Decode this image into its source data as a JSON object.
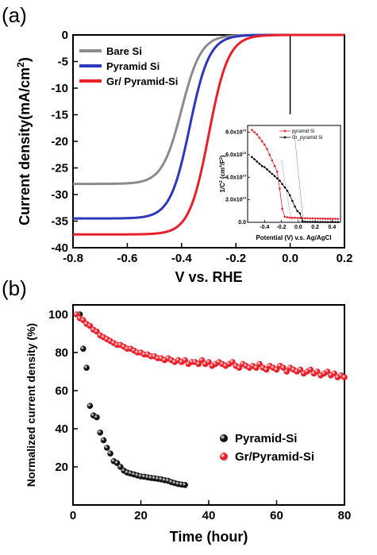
{
  "panel_a_label": "(a)",
  "panel_b_label": "(b)",
  "chart_data": [
    {
      "type": "line",
      "xlabel": "V vs. RHE",
      "ylabel_parts": [
        "Current density",
        "(mA/cm",
        "2",
        ")"
      ],
      "xlim": [
        -0.8,
        0.2
      ],
      "ylim": [
        -40,
        0
      ],
      "xticks": [
        -0.8,
        -0.6,
        -0.4,
        -0.2,
        0.0,
        0.2
      ],
      "xtick_labels": [
        "-0.8",
        "-0.6",
        "-0.4",
        "-0.2",
        "0.0",
        "0.2"
      ],
      "yticks": [
        0,
        -5,
        -10,
        -15,
        -20,
        -25,
        -30,
        -35,
        -40
      ],
      "ytick_labels": [
        "0",
        "-5",
        "-10",
        "-15",
        "-20",
        "-25",
        "-30",
        "-35",
        "-40"
      ],
      "legend_position": "top-left",
      "zero_line_x": 0.0,
      "series": [
        {
          "name": "Bare Si",
          "color": "#8c8c8c",
          "jsat": -28,
          "v_mid": -0.4,
          "width": 0.036,
          "v_start": -0.8
        },
        {
          "name": "Pyramid Si",
          "color": "#2e38b8",
          "jsat": -34.5,
          "v_mid": -0.37,
          "width": 0.036,
          "v_start": -0.8
        },
        {
          "name": "Gr/ Pyramid-Si",
          "color": "#e8202a",
          "jsat": -37.5,
          "v_mid": -0.3,
          "width": 0.036,
          "v_start": -0.8
        }
      ],
      "inset": {
        "xlabel": "Potential (V) v.s. Ag/AgCl",
        "ylabel_parts": [
          "1/C",
          "2",
          " (cm",
          "4",
          "/F",
          "2",
          ")"
        ],
        "xlim": [
          -0.6,
          0.5
        ],
        "ylim": [
          0,
          8.6
        ],
        "xticks": [
          -0.4,
          -0.2,
          0.0,
          0.2,
          0.4
        ],
        "xtick_labels": [
          "-0.4",
          "-0.2",
          "0.0",
          "0.2",
          "0.4"
        ],
        "yticks": [
          0,
          2,
          4,
          6,
          8
        ],
        "ytick_labels": [
          "0.0",
          "2.0x10",
          "4.0x10",
          "6.0x10",
          "8.0x10"
        ],
        "ytick_exponent": "15",
        "series": [
          {
            "name": "pyramid Si",
            "color": "#e8202a",
            "x": [
              -0.55,
              -0.52,
              -0.49,
              -0.46,
              -0.43,
              -0.4,
              -0.37,
              -0.34,
              -0.31,
              -0.28,
              -0.25,
              -0.22,
              -0.19,
              -0.16,
              -0.13,
              -0.1,
              -0.07,
              -0.04,
              -0.01,
              0.02,
              0.05,
              0.08,
              0.11,
              0.14,
              0.17,
              0.2,
              0.23,
              0.26,
              0.29,
              0.32,
              0.35,
              0.38,
              0.41,
              0.44,
              0.47
            ],
            "y": [
              8.2,
              8.0,
              7.8,
              7.5,
              7.2,
              6.9,
              6.5,
              6.0,
              5.5,
              5.0,
              4.5,
              3.0,
              1.2,
              0.5,
              0.45,
              0.42,
              0.4,
              0.4,
              0.38,
              0.38,
              0.37,
              0.36,
              0.36,
              0.35,
              0.35,
              0.34,
              0.34,
              0.33,
              0.33,
              0.32,
              0.32,
              0.32,
              0.31,
              0.31,
              0.3
            ]
          },
          {
            "name": "Gr_pyramid Si",
            "color": "#000000",
            "x": [
              -0.55,
              -0.52,
              -0.49,
              -0.46,
              -0.43,
              -0.4,
              -0.37,
              -0.34,
              -0.31,
              -0.28,
              -0.25,
              -0.22,
              -0.19,
              -0.16,
              -0.13,
              -0.1,
              -0.07,
              -0.04,
              -0.01,
              0.02,
              0.05,
              0.08,
              0.11,
              0.14,
              0.17,
              0.2,
              0.23,
              0.26,
              0.29,
              0.32,
              0.35,
              0.38,
              0.41,
              0.44,
              0.47
            ],
            "y": [
              5.8,
              5.6,
              5.4,
              5.2,
              5.0,
              4.9,
              4.7,
              4.5,
              4.3,
              4.1,
              3.9,
              3.7,
              3.4,
              3.1,
              2.8,
              2.4,
              1.9,
              1.4,
              1.0,
              0.8,
              0.1,
              0.05,
              0.04,
              0.04,
              0.04,
              0.03,
              0.03,
              0.03,
              0.03,
              0.02,
              0.02,
              0.02,
              0.02,
              0.02,
              0.02
            ]
          }
        ]
      }
    },
    {
      "type": "scatter",
      "xlabel": "Time (hour)",
      "ylabel": "Normalized current density (%)",
      "xlim": [
        0,
        80
      ],
      "ylim": [
        0,
        105
      ],
      "xticks": [
        0,
        20,
        40,
        60,
        80
      ],
      "xtick_labels": [
        "0",
        "20",
        "40",
        "60",
        "80"
      ],
      "yticks": [
        20,
        40,
        60,
        80,
        100
      ],
      "ytick_labels": [
        "20",
        "40",
        "60",
        "80",
        "100"
      ],
      "legend_position": "bottom-right",
      "series": [
        {
          "name": "Pyramid-Si",
          "color": "#111111",
          "x": [
            2,
            3,
            4,
            5,
            6,
            7,
            8,
            9,
            10,
            11,
            12,
            13,
            14,
            15,
            16,
            17,
            18,
            19,
            20,
            21,
            22,
            23,
            24,
            25,
            26,
            27,
            28,
            29,
            30,
            31,
            32,
            33
          ],
          "y": [
            100,
            82,
            72,
            52,
            47,
            46,
            38,
            34,
            30,
            27,
            23,
            22,
            20,
            18,
            17,
            16.5,
            16,
            15.5,
            15,
            14.8,
            14.5,
            14.2,
            14,
            13.7,
            13.4,
            13,
            12.7,
            12,
            11.5,
            11,
            10.7,
            10.5
          ]
        },
        {
          "name": "Gr/Pyramid-Si",
          "color": "#e8202a",
          "x": [
            1,
            2,
            3,
            4,
            5,
            6,
            7,
            8,
            9,
            10,
            11,
            12,
            13,
            14,
            15,
            16,
            17,
            18,
            19,
            20,
            21,
            22,
            23,
            24,
            25,
            26,
            27,
            28,
            29,
            30,
            31,
            32,
            33,
            34,
            35,
            36,
            37,
            38,
            39,
            40,
            41,
            42,
            43,
            44,
            45,
            46,
            47,
            48,
            49,
            50,
            51,
            52,
            53,
            54,
            55,
            56,
            57,
            58,
            59,
            60,
            61,
            62,
            63,
            64,
            65,
            66,
            67,
            68,
            69,
            70,
            71,
            72,
            73,
            74,
            75,
            76,
            77,
            78,
            79,
            80
          ],
          "y": [
            100,
            98,
            97,
            95,
            94,
            92,
            91,
            89,
            88,
            87,
            86,
            85,
            84,
            84,
            83,
            82,
            82,
            81,
            80,
            80,
            79,
            79,
            78,
            78,
            77,
            77,
            76,
            77,
            76,
            75,
            76,
            75,
            76,
            74,
            75,
            75,
            74,
            76,
            74,
            75,
            73,
            74,
            75,
            74,
            73,
            74,
            75,
            73,
            72,
            74,
            73,
            72,
            73,
            72,
            74,
            72,
            71,
            73,
            72,
            71,
            73,
            72,
            70,
            72,
            71,
            70,
            71,
            69,
            70,
            71,
            69,
            70,
            68,
            69,
            70,
            68,
            69,
            67,
            68,
            67
          ]
        }
      ]
    }
  ]
}
